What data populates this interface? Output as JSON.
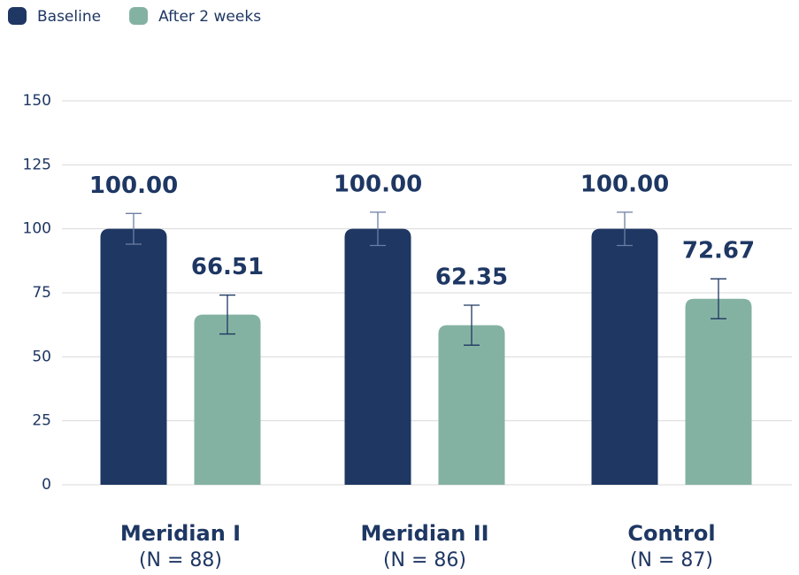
{
  "chart_data": {
    "type": "bar",
    "categories": [
      "Meridian I",
      "Meridian II",
      "Control"
    ],
    "category_notes": [
      "(N = 88)",
      "(N = 86)",
      "(N = 87)"
    ],
    "series": [
      {
        "name": "Baseline",
        "color": "#1e3763",
        "values": [
          100,
          100,
          100
        ],
        "value_labels": [
          "100.00",
          "100.00",
          "100.00"
        ],
        "errors": [
          6,
          6.5,
          6.5
        ]
      },
      {
        "name": "After 2 weeks",
        "color": "#84b2a2",
        "values": [
          66.51,
          62.35,
          72.67
        ],
        "errors": [
          7.6,
          7.8,
          7.8
        ]
      }
    ],
    "ylim": [
      0,
      150
    ],
    "yticks": [
      0,
      25,
      50,
      75,
      100,
      125,
      150
    ],
    "grid": true,
    "legend": "top-left"
  }
}
